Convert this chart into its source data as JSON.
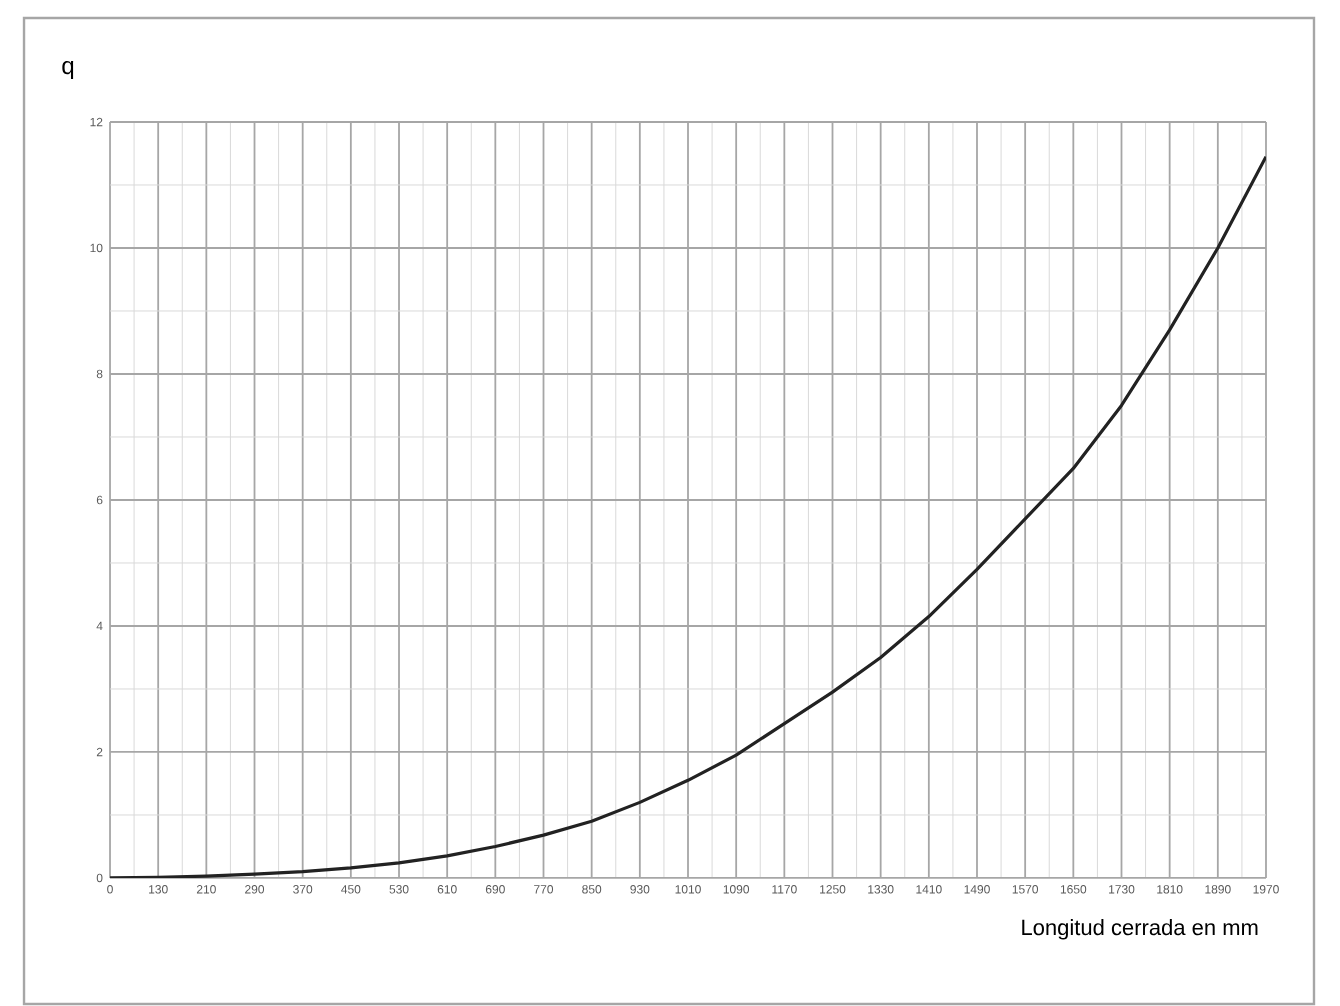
{
  "chart_data": {
    "type": "line",
    "xlabel": "Longitud cerrada en mm",
    "ylabel": "q",
    "categories": [
      "0",
      "130",
      "210",
      "290",
      "370",
      "450",
      "530",
      "610",
      "690",
      "770",
      "850",
      "930",
      "1010",
      "1090",
      "1170",
      "1250",
      "1330",
      "1410",
      "1490",
      "1570",
      "1650",
      "1730",
      "1810",
      "1890",
      "1970"
    ],
    "series": [
      {
        "color": "#222222",
        "values": [
          0,
          0.01,
          0.03,
          0.06,
          0.1,
          0.16,
          0.24,
          0.35,
          0.5,
          0.68,
          0.9,
          1.2,
          1.55,
          1.95,
          2.45,
          2.95,
          3.5,
          4.15,
          4.9,
          5.7,
          6.5,
          7.5,
          8.7,
          10.0,
          11.45
        ]
      }
    ],
    "ylim": [
      0,
      12
    ],
    "yticks": [
      0,
      2,
      4,
      6,
      8,
      10,
      12
    ],
    "grid": true,
    "marker": "none",
    "line_style": "solid"
  }
}
